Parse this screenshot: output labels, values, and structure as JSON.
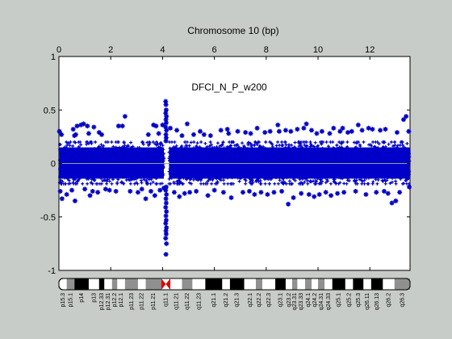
{
  "chart_data": {
    "type": "scatter",
    "title": "Chromosome 10 (bp)",
    "annotation": "DFCI_N_P_w200",
    "x_axis": {
      "position": "top",
      "ticks": [
        0,
        2,
        4,
        6,
        8,
        10,
        12
      ],
      "tick_labels": [
        "0",
        "2",
        "4",
        "6",
        "8",
        "10",
        "12"
      ],
      "range": [
        0,
        13.55
      ]
    },
    "y_axis": {
      "ticks": [
        -1,
        -0.5,
        0,
        0.5,
        1
      ],
      "tick_labels": [
        "-1",
        "-0.5",
        "0",
        "0.5",
        "1"
      ],
      "range": [
        -1,
        1
      ]
    },
    "grid": false,
    "marker": "asterisk",
    "series_color": "#0000c8",
    "zero_line_color": "#9aa0a0",
    "dense_band": {
      "y_low": -0.19,
      "y_high": 0.2
    },
    "centromere_x": 4.15,
    "series": [
      {
        "outliers": [
          [
            0.02,
            0.3
          ],
          [
            0.05,
            -0.26
          ],
          [
            0.1,
            0.27
          ],
          [
            0.12,
            -0.33
          ],
          [
            0.3,
            -0.29
          ],
          [
            0.5,
            -0.25
          ],
          [
            0.55,
            0.32
          ],
          [
            0.6,
            0.26
          ],
          [
            0.62,
            -0.35
          ],
          [
            0.65,
            0.27
          ],
          [
            0.7,
            0.35
          ],
          [
            0.85,
            0.36
          ],
          [
            0.95,
            0.37
          ],
          [
            1.0,
            -0.24
          ],
          [
            1.1,
            0.35
          ],
          [
            1.15,
            0.28
          ],
          [
            1.2,
            -0.3
          ],
          [
            1.3,
            -0.26
          ],
          [
            1.35,
            0.34
          ],
          [
            1.5,
            -0.27
          ],
          [
            1.55,
            0.29
          ],
          [
            1.65,
            0.27
          ],
          [
            1.8,
            -0.24
          ],
          [
            1.95,
            -0.25
          ],
          [
            2.2,
            -0.26
          ],
          [
            2.3,
            0.35
          ],
          [
            2.45,
            0.35
          ],
          [
            2.55,
            0.44
          ],
          [
            2.75,
            -0.26
          ],
          [
            3.05,
            -0.27
          ],
          [
            3.2,
            -0.24
          ],
          [
            3.35,
            -0.33
          ],
          [
            3.45,
            0.27
          ],
          [
            3.55,
            -0.26
          ],
          [
            3.65,
            0.36
          ],
          [
            3.7,
            -0.3
          ],
          [
            3.75,
            0.35
          ],
          [
            3.85,
            0.28
          ],
          [
            3.9,
            -0.25
          ],
          [
            4.0,
            0.36
          ],
          [
            4.05,
            -0.23
          ],
          [
            4.3,
            0.33
          ],
          [
            4.45,
            -0.27
          ],
          [
            4.55,
            0.31
          ],
          [
            4.65,
            -0.31
          ],
          [
            4.75,
            0.26
          ],
          [
            4.85,
            -0.28
          ],
          [
            4.95,
            0.37
          ],
          [
            5.05,
            -0.27
          ],
          [
            5.2,
            0.27
          ],
          [
            5.3,
            -0.26
          ],
          [
            5.45,
            0.3
          ],
          [
            5.6,
            0.27
          ],
          [
            5.75,
            -0.3
          ],
          [
            5.85,
            0.26
          ],
          [
            6.0,
            -0.25
          ],
          [
            6.25,
            0.31
          ],
          [
            6.35,
            -0.27
          ],
          [
            6.5,
            0.32
          ],
          [
            6.55,
            0.28
          ],
          [
            6.65,
            -0.32
          ],
          [
            6.9,
            0.3
          ],
          [
            7.1,
            -0.27
          ],
          [
            7.2,
            0.29
          ],
          [
            7.35,
            -0.26
          ],
          [
            7.4,
            0.28
          ],
          [
            7.55,
            -0.29
          ],
          [
            7.65,
            0.33
          ],
          [
            7.8,
            -0.27
          ],
          [
            7.95,
            0.29
          ],
          [
            8.05,
            -0.29
          ],
          [
            8.15,
            0.3
          ],
          [
            8.3,
            -0.27
          ],
          [
            8.45,
            0.36
          ],
          [
            8.5,
            0.3
          ],
          [
            8.6,
            -0.26
          ],
          [
            8.75,
            0.31
          ],
          [
            8.85,
            -0.38
          ],
          [
            8.95,
            0.3
          ],
          [
            9.05,
            -0.32
          ],
          [
            9.2,
            0.32
          ],
          [
            9.35,
            -0.28
          ],
          [
            9.45,
            0.33
          ],
          [
            9.55,
            0.37
          ],
          [
            9.65,
            -0.29
          ],
          [
            9.75,
            0.31
          ],
          [
            9.85,
            -0.31
          ],
          [
            9.95,
            0.28
          ],
          [
            10.05,
            -0.29
          ],
          [
            10.15,
            0.3
          ],
          [
            10.3,
            -0.27
          ],
          [
            10.45,
            0.28
          ],
          [
            10.5,
            -0.3
          ],
          [
            10.6,
            0.33
          ],
          [
            10.75,
            -0.28
          ],
          [
            10.85,
            0.3
          ],
          [
            10.95,
            0.33
          ],
          [
            11.0,
            -0.27
          ],
          [
            11.15,
            0.29
          ],
          [
            11.3,
            0.3
          ],
          [
            11.45,
            -0.26
          ],
          [
            11.55,
            0.36
          ],
          [
            11.7,
            0.31
          ],
          [
            11.85,
            -0.29
          ],
          [
            11.95,
            0.33
          ],
          [
            12.1,
            0.32
          ],
          [
            12.25,
            -0.27
          ],
          [
            12.4,
            0.31
          ],
          [
            12.55,
            -0.26
          ],
          [
            12.6,
            0.32
          ],
          [
            12.7,
            -0.28
          ],
          [
            12.85,
            -0.37
          ],
          [
            13.0,
            -0.35
          ],
          [
            13.05,
            0.29
          ],
          [
            13.15,
            -0.27
          ],
          [
            13.3,
            0.41
          ],
          [
            13.4,
            0.44
          ],
          [
            13.5,
            0.3
          ],
          [
            13.52,
            -0.22
          ]
        ],
        "centromere_spike": [
          [
            4.12,
            0.58
          ],
          [
            4.13,
            0.55
          ],
          [
            4.14,
            0.5
          ],
          [
            4.12,
            0.47
          ],
          [
            4.15,
            0.44
          ],
          [
            4.13,
            0.41
          ],
          [
            4.14,
            0.38
          ],
          [
            4.12,
            0.34
          ],
          [
            4.15,
            0.31
          ],
          [
            4.13,
            0.27
          ],
          [
            4.14,
            0.24
          ],
          [
            4.13,
            0.21
          ],
          [
            4.14,
            -0.22
          ],
          [
            4.12,
            -0.25
          ],
          [
            4.15,
            -0.29
          ],
          [
            4.13,
            -0.33
          ],
          [
            4.14,
            -0.37
          ],
          [
            4.12,
            -0.41
          ],
          [
            4.15,
            -0.45
          ],
          [
            4.13,
            -0.49
          ],
          [
            4.14,
            -0.53
          ],
          [
            4.12,
            -0.56
          ],
          [
            4.15,
            -0.6
          ],
          [
            4.13,
            -0.63
          ],
          [
            4.14,
            -0.66
          ],
          [
            4.12,
            -0.7
          ],
          [
            4.15,
            -0.75
          ],
          [
            4.13,
            -0.85
          ]
        ]
      }
    ]
  },
  "ideogram": {
    "bands": [
      {
        "label": "p15.3",
        "start": 0.0,
        "end": 0.3,
        "stain": "white"
      },
      {
        "label": "p15.1",
        "start": 0.3,
        "end": 0.6,
        "stain": "gray"
      },
      {
        "label": "p14",
        "start": 0.6,
        "end": 1.15,
        "stain": "black"
      },
      {
        "label": "p13",
        "start": 1.15,
        "end": 1.55,
        "stain": "white"
      },
      {
        "label": "p12.33",
        "start": 1.55,
        "end": 1.75,
        "stain": "black"
      },
      {
        "label": "p12.31",
        "start": 1.75,
        "end": 2.05,
        "stain": "white"
      },
      {
        "label": "p12.2",
        "start": 2.05,
        "end": 2.25,
        "stain": "gray"
      },
      {
        "label": "p12.1",
        "start": 2.25,
        "end": 2.55,
        "stain": "white"
      },
      {
        "label": "p11.23",
        "start": 2.55,
        "end": 3.05,
        "stain": "gray"
      },
      {
        "label": "p11.22",
        "start": 3.05,
        "end": 3.35,
        "stain": "white"
      },
      {
        "label": "p11.21",
        "start": 3.35,
        "end": 3.95,
        "stain": "gray"
      },
      {
        "label": "q11.1",
        "start": 3.95,
        "end": 4.3,
        "stain": "centromere"
      },
      {
        "label": "q11.21",
        "start": 4.3,
        "end": 4.75,
        "stain": "white"
      },
      {
        "label": "q11.22",
        "start": 4.75,
        "end": 5.15,
        "stain": "gray"
      },
      {
        "label": "q11.23",
        "start": 5.15,
        "end": 5.65,
        "stain": "white"
      },
      {
        "label": "q21.1",
        "start": 5.65,
        "end": 6.3,
        "stain": "black"
      },
      {
        "label": "q21.2",
        "start": 6.3,
        "end": 6.6,
        "stain": "white"
      },
      {
        "label": "q21.3",
        "start": 6.6,
        "end": 7.15,
        "stain": "black"
      },
      {
        "label": "q22.1",
        "start": 7.15,
        "end": 7.6,
        "stain": "white"
      },
      {
        "label": "q22.2",
        "start": 7.6,
        "end": 7.85,
        "stain": "gray"
      },
      {
        "label": "q22.3",
        "start": 7.85,
        "end": 8.35,
        "stain": "white"
      },
      {
        "label": "q23.1",
        "start": 8.35,
        "end": 8.75,
        "stain": "black"
      },
      {
        "label": "q23.2",
        "start": 8.75,
        "end": 9.0,
        "stain": "white"
      },
      {
        "label": "q23.31",
        "start": 9.0,
        "end": 9.2,
        "stain": "gray"
      },
      {
        "label": "q23.33",
        "start": 9.2,
        "end": 9.5,
        "stain": "white"
      },
      {
        "label": "q24.1",
        "start": 9.5,
        "end": 9.75,
        "stain": "gray"
      },
      {
        "label": "q24.2",
        "start": 9.75,
        "end": 10.0,
        "stain": "white"
      },
      {
        "label": "q24.31",
        "start": 10.0,
        "end": 10.25,
        "stain": "gray"
      },
      {
        "label": "q24.33",
        "start": 10.25,
        "end": 10.55,
        "stain": "white"
      },
      {
        "label": "q25.1",
        "start": 10.55,
        "end": 11.05,
        "stain": "black"
      },
      {
        "label": "q25.2",
        "start": 11.05,
        "end": 11.35,
        "stain": "white"
      },
      {
        "label": "q25.3",
        "start": 11.35,
        "end": 11.75,
        "stain": "black"
      },
      {
        "label": "q26.11",
        "start": 11.75,
        "end": 12.05,
        "stain": "white"
      },
      {
        "label": "q26.13",
        "start": 12.05,
        "end": 12.5,
        "stain": "black"
      },
      {
        "label": "q26.2",
        "start": 12.5,
        "end": 12.95,
        "stain": "white"
      },
      {
        "label": "q26.3",
        "start": 12.95,
        "end": 13.55,
        "stain": "gray"
      }
    ]
  }
}
